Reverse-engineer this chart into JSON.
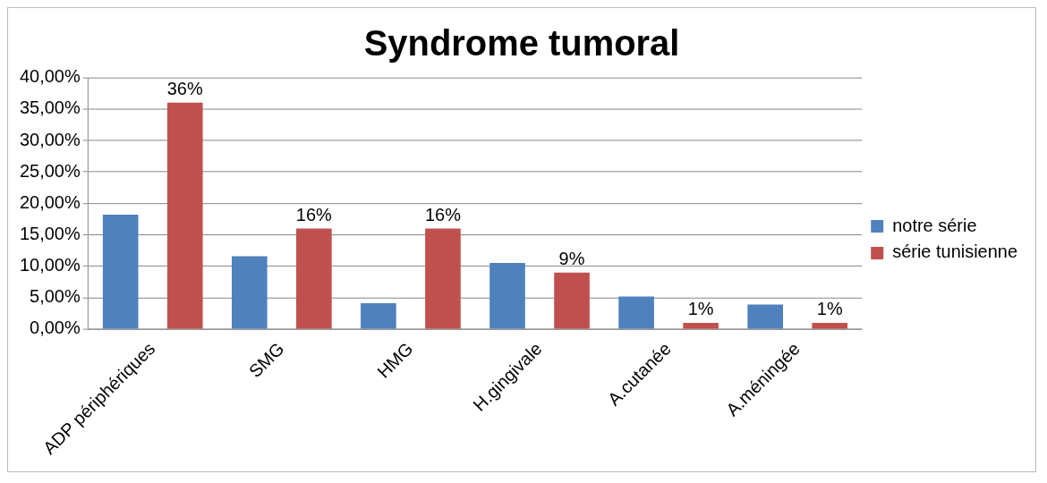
{
  "chart_data": {
    "type": "bar",
    "title": "Syndrome tumoral",
    "categories": [
      "ADP périphériques",
      "SMG",
      "HMG",
      "H.gingivale",
      "A.cutanée",
      "A.méningée"
    ],
    "series": [
      {
        "name": "notre série",
        "color": "#4f81bd",
        "values": [
          18.2,
          11.6,
          4.1,
          10.5,
          5.2,
          3.9
        ]
      },
      {
        "name": "série tunisienne",
        "color": "#c0504d",
        "values": [
          36,
          16,
          16,
          9,
          1,
          1
        ],
        "value_labels": [
          "36%",
          "16%",
          "16%",
          "9%",
          "1%",
          "1%"
        ]
      }
    ],
    "ylim": [
      0,
      40
    ],
    "yticks": [
      {
        "value": 0,
        "label": "0,00%"
      },
      {
        "value": 5,
        "label": "5,00%"
      },
      {
        "value": 10,
        "label": "10,00%"
      },
      {
        "value": 15,
        "label": "15,00%"
      },
      {
        "value": 20,
        "label": "20,00%"
      },
      {
        "value": 25,
        "label": "25,00%"
      },
      {
        "value": 30,
        "label": "30,00%"
      },
      {
        "value": 35,
        "label": "35,00%"
      },
      {
        "value": 40,
        "label": "40,00%"
      }
    ],
    "grid": "y",
    "legend": "right"
  }
}
